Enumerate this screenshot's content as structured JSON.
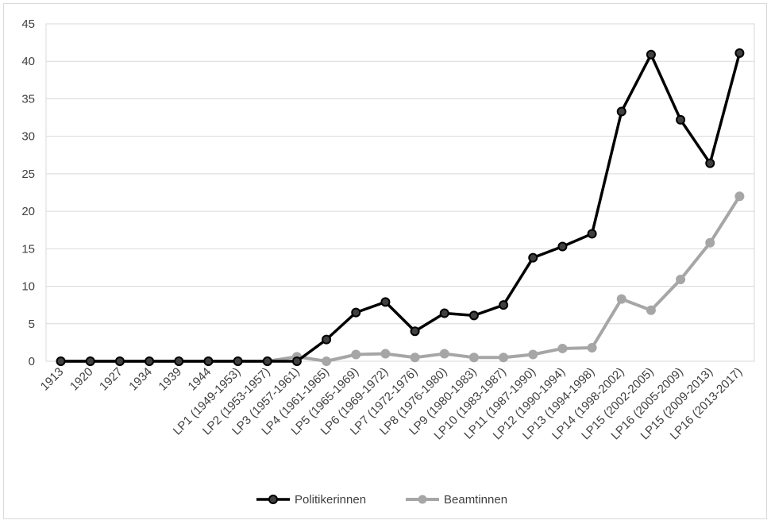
{
  "chart_data": {
    "type": "line",
    "title": "",
    "xlabel": "",
    "ylabel": "",
    "ylim": [
      0,
      45
    ],
    "y_ticks": [
      "0",
      "5",
      "10",
      "15",
      "20",
      "25",
      "30",
      "35",
      "40",
      "45"
    ],
    "grid": "horizontal",
    "legend_position": "bottom",
    "categories": [
      "1913",
      "1920",
      "1927",
      "1934",
      "1939",
      "1944",
      "LP1 (1949-1953)",
      "LP2 (1953-1957)",
      "LP3 (1957-1961)",
      "LP4 (1961-1965)",
      "LP5 (1965-1969)",
      "LP6 (1969-1972)",
      "LP7 (1972-1976)",
      "LP8 (1976-1980)",
      "LP9 (1980-1983)",
      "LP10 (1983-1987)",
      "LP11 (1987-1990)",
      "LP12 (1990-1994)",
      "LP13 (1994-1998)",
      "LP14 (1998-2002)",
      "LP15 (2002-2005)",
      "LP16 (2005-2009)",
      "LP15 (2009-2013)",
      "LP16 (2013-2017)"
    ],
    "series": [
      {
        "name": "Politikerinnen",
        "color": "#000000",
        "values": [
          0,
          0,
          0,
          0,
          0,
          0,
          0,
          0,
          0,
          2.9,
          6.5,
          7.9,
          4.0,
          6.4,
          6.1,
          7.5,
          13.8,
          15.3,
          17.0,
          33.3,
          40.9,
          32.2,
          26.4,
          41.1
        ]
      },
      {
        "name": "Beamtinnen",
        "color": "#a6a6a6",
        "values": [
          0,
          0,
          0,
          0,
          0,
          0,
          0,
          0,
          0.6,
          0,
          0.9,
          1.0,
          0.5,
          1.0,
          0.5,
          0.5,
          0.9,
          1.7,
          1.8,
          8.3,
          6.8,
          10.9,
          15.8,
          22.0
        ]
      }
    ]
  }
}
